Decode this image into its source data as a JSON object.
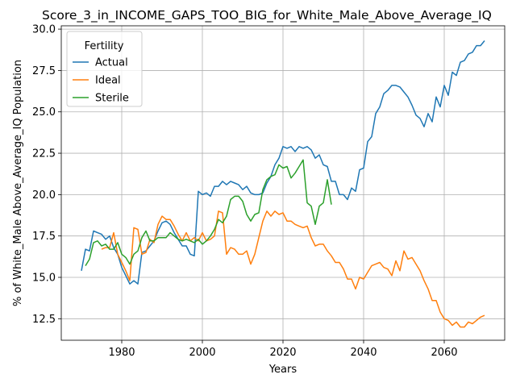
{
  "chart_data": {
    "type": "line",
    "title": "Score_3_in_INCOME_GAPS_TOO_BIG_for_White_Male_Above_Average_IQ",
    "xlabel": "Years",
    "ylabel": "% of White_Male Above_Average_IQ Population",
    "xlim": [
      1965,
      2075
    ],
    "ylim": [
      11.2,
      30.2
    ],
    "xticks": [
      1980,
      2000,
      2020,
      2040,
      2060
    ],
    "yticks": [
      12.5,
      15.0,
      17.5,
      20.0,
      22.5,
      25.0,
      27.5,
      30.0
    ],
    "xtick_labels": [
      "1980",
      "2000",
      "2020",
      "2040",
      "2060"
    ],
    "ytick_labels": [
      "12.5",
      "15.0",
      "17.5",
      "20.0",
      "22.5",
      "25.0",
      "27.5",
      "30.0"
    ],
    "grid": true,
    "legend": {
      "title": "Fertility",
      "position": "top-left"
    },
    "series": [
      {
        "name": "Actual",
        "color": "#1f77b4",
        "x": [
          1970,
          1971,
          1972,
          1973,
          1974,
          1975,
          1976,
          1977,
          1978,
          1979,
          1980,
          1981,
          1982,
          1983,
          1984,
          1985,
          1986,
          1987,
          1988,
          1989,
          1990,
          1991,
          1992,
          1993,
          1994,
          1995,
          1996,
          1997,
          1998,
          1999,
          2000,
          2001,
          2002,
          2003,
          2004,
          2005,
          2006,
          2007,
          2008,
          2009,
          2010,
          2011,
          2012,
          2013,
          2014,
          2015,
          2016,
          2017,
          2018,
          2019,
          2020,
          2021,
          2022,
          2023,
          2024,
          2025,
          2026,
          2027,
          2028,
          2029,
          2030,
          2031,
          2032,
          2033,
          2034,
          2035,
          2036,
          2037,
          2038,
          2039,
          2040,
          2041,
          2042,
          2043,
          2044,
          2045,
          2046,
          2047,
          2048,
          2049,
          2050,
          2051,
          2052,
          2053,
          2054,
          2055,
          2056,
          2057,
          2058,
          2059,
          2060,
          2061,
          2062,
          2063,
          2064,
          2065,
          2066,
          2067,
          2068,
          2069,
          2070
        ],
        "values": [
          15.4,
          16.7,
          16.6,
          17.8,
          17.7,
          17.6,
          17.3,
          17.5,
          16.8,
          16.4,
          15.6,
          15.1,
          14.6,
          14.8,
          14.6,
          16.5,
          16.6,
          16.9,
          17.2,
          17.8,
          18.3,
          18.4,
          18.2,
          17.7,
          17.3,
          16.9,
          16.9,
          16.4,
          16.3,
          20.2,
          20.0,
          20.1,
          19.9,
          20.5,
          20.5,
          20.8,
          20.6,
          20.8,
          20.7,
          20.6,
          20.3,
          20.5,
          20.1,
          20.0,
          20.0,
          20.1,
          20.7,
          21.1,
          21.8,
          22.2,
          22.9,
          22.8,
          22.9,
          22.6,
          22.9,
          22.8,
          22.9,
          22.7,
          22.2,
          22.4,
          21.8,
          21.7,
          20.8,
          20.8,
          20.0,
          20.0,
          19.7,
          20.4,
          20.2,
          21.5,
          21.6,
          23.2,
          23.5,
          24.9,
          25.3,
          26.1,
          26.3,
          26.6,
          26.6,
          26.5,
          26.2,
          25.9,
          25.4,
          24.8,
          24.6,
          24.1,
          24.9,
          24.4,
          25.9,
          25.3,
          26.6,
          26.0,
          27.4,
          27.2,
          28.0,
          28.1,
          28.5,
          28.6,
          29.0,
          29.0,
          29.3
        ]
      },
      {
        "name": "Ideal",
        "color": "#ff7f0e",
        "x": [
          1975,
          1976,
          1977,
          1978,
          1979,
          1980,
          1981,
          1982,
          1983,
          1984,
          1985,
          1986,
          1987,
          1988,
          1989,
          1990,
          1991,
          1992,
          1993,
          1994,
          1995,
          1996,
          1997,
          1998,
          1999,
          2000,
          2001,
          2002,
          2003,
          2004,
          2005,
          2006,
          2007,
          2008,
          2009,
          2010,
          2011,
          2012,
          2013,
          2014,
          2015,
          2016,
          2017,
          2018,
          2019,
          2020,
          2021,
          2022,
          2023,
          2024,
          2025,
          2026,
          2027,
          2028,
          2029,
          2030,
          2031,
          2032,
          2033,
          2034,
          2035,
          2036,
          2037,
          2038,
          2039,
          2040,
          2041,
          2042,
          2043,
          2044,
          2045,
          2046,
          2047,
          2048,
          2049,
          2050,
          2051,
          2052,
          2053,
          2054,
          2055,
          2056,
          2057,
          2058,
          2059,
          2060,
          2061,
          2062,
          2063,
          2064,
          2065,
          2066,
          2067,
          2068,
          2069,
          2070
        ],
        "values": [
          16.7,
          16.8,
          16.8,
          17.7,
          16.4,
          15.9,
          15.4,
          14.8,
          18.0,
          17.9,
          16.4,
          16.5,
          17.3,
          17.1,
          18.2,
          18.7,
          18.5,
          18.5,
          18.1,
          17.6,
          17.2,
          17.7,
          17.2,
          17.4,
          17.2,
          17.7,
          17.2,
          17.3,
          17.5,
          19.0,
          18.9,
          16.4,
          16.8,
          16.7,
          16.4,
          16.4,
          16.6,
          15.8,
          16.4,
          17.4,
          18.4,
          19.0,
          18.7,
          19.0,
          18.8,
          18.9,
          18.4,
          18.4,
          18.2,
          18.1,
          18.0,
          18.1,
          17.4,
          16.9,
          17.0,
          17.0,
          16.6,
          16.3,
          15.9,
          15.9,
          15.5,
          14.9,
          14.9,
          14.3,
          15.0,
          14.9,
          15.3,
          15.7,
          15.8,
          15.9,
          15.6,
          15.5,
          15.1,
          16.0,
          15.4,
          16.6,
          16.1,
          16.2,
          15.8,
          15.4,
          14.8,
          14.3,
          13.6,
          13.6,
          12.9,
          12.5,
          12.4,
          12.1,
          12.3,
          12.0,
          12.0,
          12.3,
          12.2,
          12.4,
          12.6,
          12.7
        ]
      },
      {
        "name": "Sterile",
        "color": "#2ca02c",
        "x": [
          1971,
          1972,
          1973,
          1974,
          1975,
          1976,
          1977,
          1978,
          1979,
          1980,
          1981,
          1982,
          1983,
          1984,
          1985,
          1986,
          1987,
          1988,
          1989,
          1990,
          1991,
          1992,
          1993,
          1994,
          1995,
          1996,
          1997,
          1998,
          1999,
          2000,
          2001,
          2002,
          2003,
          2004,
          2005,
          2006,
          2007,
          2008,
          2009,
          2010,
          2011,
          2012,
          2013,
          2014,
          2015,
          2016,
          2017,
          2018,
          2019,
          2020,
          2021,
          2022,
          2023,
          2024,
          2025,
          2026,
          2027,
          2028,
          2029,
          2030,
          2031,
          2032
        ],
        "values": [
          15.7,
          16.1,
          17.1,
          17.2,
          16.9,
          17.0,
          16.7,
          16.7,
          17.1,
          16.4,
          16.2,
          15.8,
          16.4,
          16.6,
          17.4,
          17.8,
          17.2,
          17.2,
          17.4,
          17.4,
          17.4,
          17.7,
          17.5,
          17.3,
          17.2,
          17.3,
          17.2,
          17.1,
          17.3,
          17.0,
          17.2,
          17.5,
          17.9,
          18.5,
          18.3,
          18.7,
          19.7,
          19.9,
          19.9,
          19.6,
          18.8,
          18.4,
          18.8,
          18.9,
          20.3,
          20.9,
          21.1,
          21.2,
          21.8,
          21.6,
          21.7,
          21.0,
          21.3,
          21.7,
          22.1,
          19.5,
          19.3,
          18.2,
          19.3,
          19.5,
          20.9,
          19.4
        ]
      }
    ]
  }
}
